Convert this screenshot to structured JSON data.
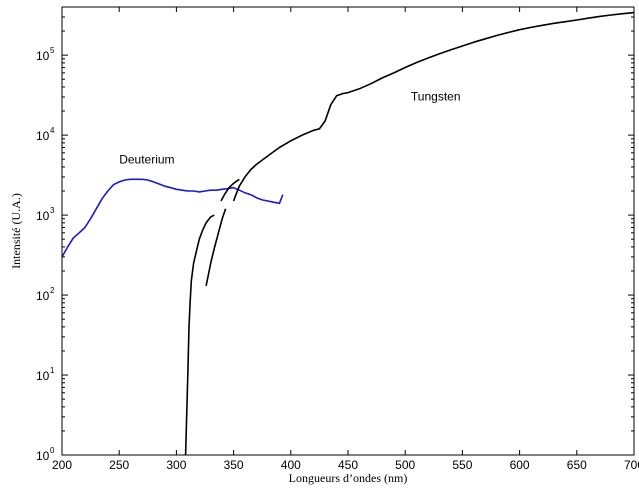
{
  "chart_data": {
    "type": "line",
    "title": "",
    "xlabel": "Longueurs d’ondes (nm)",
    "ylabel": "Intensité (U.A.)",
    "x_scale": "linear",
    "y_scale": "log",
    "xlim": [
      200,
      700
    ],
    "ylim": [
      1,
      400000
    ],
    "x_ticks": [
      200,
      250,
      300,
      350,
      400,
      450,
      500,
      550,
      600,
      650,
      700
    ],
    "y_ticks": [
      {
        "base": "10",
        "exp": "0",
        "value": 1
      },
      {
        "base": "10",
        "exp": "1",
        "value": 10
      },
      {
        "base": "10",
        "exp": "2",
        "value": 100
      },
      {
        "base": "10",
        "exp": "3",
        "value": 1000
      },
      {
        "base": "10",
        "exp": "4",
        "value": 10000
      },
      {
        "base": "10",
        "exp": "5",
        "value": 100000
      }
    ],
    "grid": false,
    "legend": "none",
    "annotations": [
      {
        "text": "Deuterium",
        "x": 250,
        "y": 4400
      },
      {
        "text": "Tungsten",
        "x": 505,
        "y": 27000
      }
    ],
    "series": [
      {
        "color": "#1a1acc",
        "x": [
          200,
          205,
          210,
          215,
          220,
          225,
          230,
          235,
          240,
          245,
          250,
          255,
          260,
          265,
          270,
          275,
          280,
          285,
          290,
          295,
          300,
          305,
          310,
          315,
          320,
          325,
          330,
          335,
          340,
          345,
          350,
          355,
          360,
          365,
          370,
          375,
          380,
          385,
          390,
          393
        ],
        "y": [
          300,
          400,
          520,
          600,
          700,
          900,
          1200,
          1600,
          2000,
          2400,
          2600,
          2750,
          2800,
          2800,
          2800,
          2750,
          2600,
          2450,
          2300,
          2200,
          2100,
          2050,
          2000,
          2000,
          1950,
          2000,
          2050,
          2050,
          2100,
          2150,
          2200,
          2050,
          1900,
          1800,
          1650,
          1550,
          1500,
          1450,
          1400,
          1800
        ]
      },
      {
        "color": "#000000",
        "x": [
          308,
          310,
          311,
          312,
          313,
          315,
          318,
          320,
          323,
          326,
          330,
          333
        ],
        "y": [
          1,
          10,
          40,
          80,
          150,
          250,
          380,
          500,
          650,
          800,
          950,
          1000
        ]
      },
      {
        "color": "#000000",
        "x": [
          326,
          328,
          330,
          333,
          336,
          340,
          343
        ],
        "y": [
          130,
          180,
          250,
          380,
          550,
          900,
          1200
        ]
      },
      {
        "color": "#000000",
        "x": [
          339,
          342,
          346,
          350,
          355
        ],
        "y": [
          1500,
          1800,
          2200,
          2500,
          2800
        ]
      },
      {
        "color": "#000000",
        "x": [
          350,
          352,
          355,
          360,
          365,
          370,
          380,
          390,
          400,
          410,
          420,
          425,
          430,
          435,
          440,
          445,
          450,
          460,
          470,
          480,
          490,
          500,
          510,
          520,
          530,
          540,
          550,
          560,
          570,
          580,
          590,
          600,
          610,
          620,
          630,
          640,
          650,
          660,
          670,
          680,
          690,
          700,
          705
        ],
        "y": [
          1500,
          1800,
          2300,
          3000,
          3700,
          4300,
          5500,
          7000,
          8500,
          10000,
          11500,
          12000,
          15000,
          24000,
          31000,
          33000,
          34000,
          38000,
          44000,
          52000,
          60000,
          70000,
          81000,
          92000,
          104000,
          117000,
          130000,
          145000,
          160000,
          176000,
          192000,
          208000,
          222000,
          236000,
          250000,
          262000,
          275000,
          290000,
          305000,
          318000,
          330000,
          340000,
          345000
        ]
      }
    ]
  }
}
